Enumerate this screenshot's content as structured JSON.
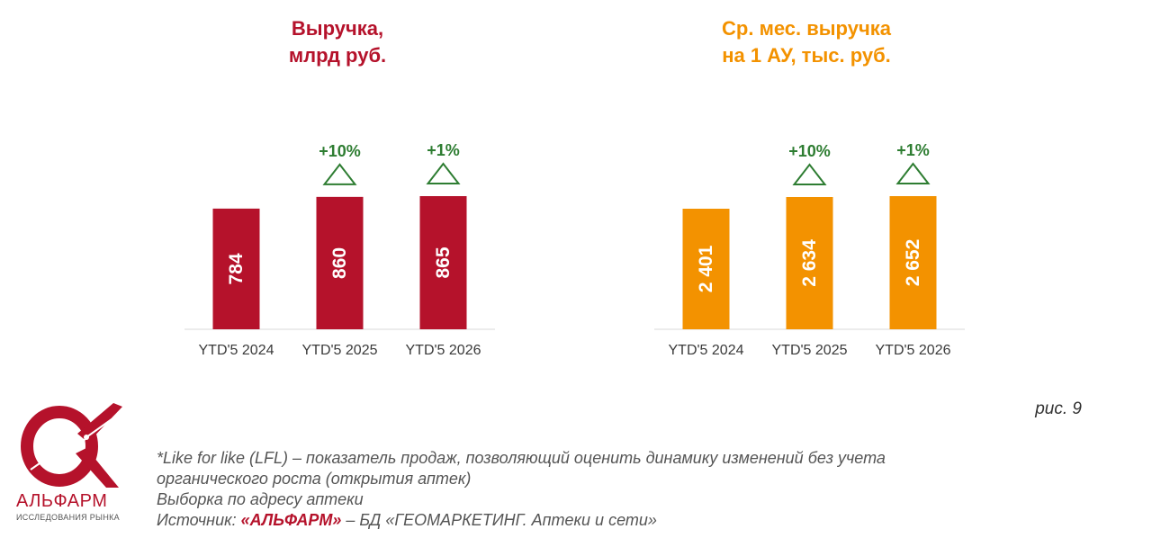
{
  "chart_data": [
    {
      "type": "bar",
      "title_lines": [
        "Выручка,",
        "млрд руб."
      ],
      "categories": [
        "YTD'5 2024",
        "YTD'5 2025",
        "YTD'5 2026"
      ],
      "values": [
        784,
        860,
        865
      ],
      "value_labels": [
        "784",
        "860",
        "865"
      ],
      "changes": [
        "",
        "+10%",
        "+1%"
      ],
      "bar_color": "#b5122b",
      "title_color": "#b5122b"
    },
    {
      "type": "bar",
      "title_lines": [
        "Ср. мес. выручка",
        "на 1 АУ, тыс. руб."
      ],
      "categories": [
        "YTD'5 2024",
        "YTD'5 2025",
        "YTD'5 2026"
      ],
      "values": [
        2401,
        2634,
        2652
      ],
      "value_labels": [
        "2 401",
        "2 634",
        "2 652"
      ],
      "changes": [
        "",
        "+10%",
        "+1%"
      ],
      "bar_color": "#f39200",
      "title_color": "#f39200"
    }
  ],
  "change_color": "#2e7d32",
  "figure_label": "рис. 9",
  "footnote": {
    "line1": "*Like for like (LFL) – показатель продаж, позволяющий оценить динамику изменений без учета",
    "line2": "органического роста (открытия аптек)",
    "line3": "Выборка по адресу аптеки",
    "source_prefix": "Источник: ",
    "source_brand": "«АЛЬФАРМ»",
    "source_suffix": " – БД «ГЕОМАРКЕТИНГ. Аптеки и сети»"
  },
  "logo": {
    "word": "АЛЬФАРМ",
    "subtitle": "ИССЛЕДОВАНИЯ РЫНКА"
  }
}
